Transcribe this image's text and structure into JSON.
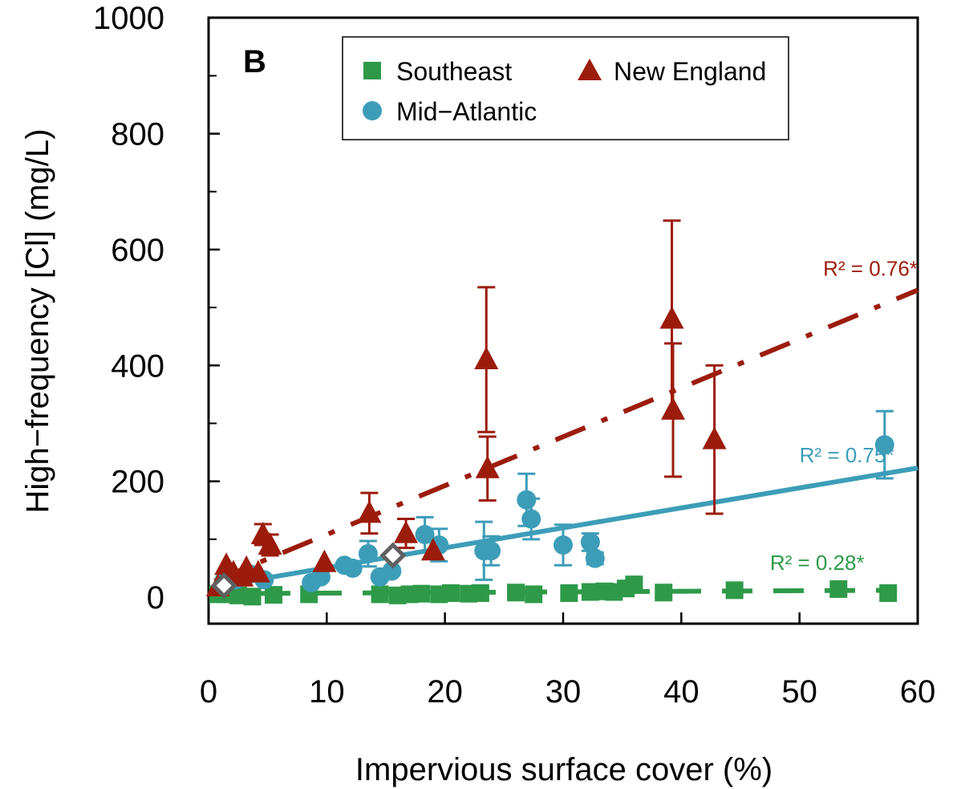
{
  "chart_data": {
    "type": "scatter",
    "panel_label": "B",
    "xlabel": "Impervious surface cover (%)",
    "ylabel": "High−frequency [Cl] (mg/L)",
    "xlim": [
      0,
      60
    ],
    "ylim": [
      -50,
      1000
    ],
    "xticks": [
      0,
      10,
      20,
      30,
      40,
      50,
      60
    ],
    "yticks": [
      0,
      200,
      400,
      600,
      800,
      1000
    ],
    "yminor": [
      100,
      300,
      500,
      700,
      900
    ],
    "legend": {
      "position": "top",
      "entries": [
        {
          "name": "Southeast",
          "color": "#2e9a49",
          "marker": "square"
        },
        {
          "name": "New England",
          "color": "#9c1c0c",
          "marker": "triangle"
        },
        {
          "name": "Mid−Atlantic",
          "color": "#3d9db8",
          "marker": "circle"
        }
      ]
    },
    "series": [
      {
        "name": "Southeast",
        "color": "#2e9a49",
        "marker": "square",
        "trend": {
          "x0": 0,
          "y0": 6,
          "x1": 58,
          "y1": 12,
          "style": "dashed"
        },
        "r2_label": "R² = 0.28*",
        "r2_pos": [
          47.5,
          47
        ],
        "points": [
          {
            "x": 0.8,
            "y": 5
          },
          {
            "x": 1.5,
            "y": 5
          },
          {
            "x": 2.5,
            "y": 3
          },
          {
            "x": 3.7,
            "y": 1
          },
          {
            "x": 5.5,
            "y": 4
          },
          {
            "x": 8.5,
            "y": 5
          },
          {
            "x": 14.5,
            "y": 5
          },
          {
            "x": 16,
            "y": 3
          },
          {
            "x": 17,
            "y": 5
          },
          {
            "x": 18,
            "y": 6
          },
          {
            "x": 19.5,
            "y": 5
          },
          {
            "x": 20.5,
            "y": 7
          },
          {
            "x": 22,
            "y": 6
          },
          {
            "x": 23,
            "y": 7
          },
          {
            "x": 26,
            "y": 8
          },
          {
            "x": 27.5,
            "y": 5
          },
          {
            "x": 30.5,
            "y": 7
          },
          {
            "x": 32.3,
            "y": 9
          },
          {
            "x": 33.5,
            "y": 10
          },
          {
            "x": 34.3,
            "y": 9
          },
          {
            "x": 35.3,
            "y": 15
          },
          {
            "x": 36,
            "y": 22
          },
          {
            "x": 38.5,
            "y": 8
          },
          {
            "x": 44.5,
            "y": 12
          },
          {
            "x": 53.3,
            "y": 14
          },
          {
            "x": 57.5,
            "y": 7
          }
        ]
      },
      {
        "name": "Mid−Atlantic",
        "color": "#3d9db8",
        "marker": "circle",
        "trend": {
          "x0": 0.5,
          "y0": 18,
          "x1": 60,
          "y1": 223,
          "style": "solid"
        },
        "r2_label": "R² = 0.75*",
        "r2_pos": [
          50,
          233
        ],
        "points": [
          {
            "x": 1.3,
            "y": 28
          },
          {
            "x": 2.3,
            "y": 30
          },
          {
            "x": 3.5,
            "y": 40
          },
          {
            "x": 4.7,
            "y": 30
          },
          {
            "x": 8.7,
            "y": 25
          },
          {
            "x": 9.5,
            "y": 35
          },
          {
            "x": 11.5,
            "y": 55
          },
          {
            "x": 12.2,
            "y": 50
          },
          {
            "x": 13.5,
            "y": 75,
            "err": 22
          },
          {
            "x": 14.5,
            "y": 35
          },
          {
            "x": 15.5,
            "y": 45
          },
          {
            "x": 18.3,
            "y": 108,
            "err": 30
          },
          {
            "x": 19.5,
            "y": 90,
            "err": 28
          },
          {
            "x": 23.3,
            "y": 80,
            "err": 50
          },
          {
            "x": 23.9,
            "y": 80,
            "err": 25
          },
          {
            "x": 26.9,
            "y": 168,
            "err": 45
          },
          {
            "x": 27.3,
            "y": 135,
            "err": 35
          },
          {
            "x": 30,
            "y": 90,
            "err": 35
          },
          {
            "x": 32.3,
            "y": 95,
            "err": 15
          },
          {
            "x": 32.7,
            "y": 67,
            "err": 10
          },
          {
            "x": 57.2,
            "y": 263,
            "err": 58
          }
        ]
      },
      {
        "name": "New England",
        "color": "#9c1c0c",
        "marker": "triangle",
        "trend": {
          "x0": 0.5,
          "y0": 28,
          "x1": 60,
          "y1": 530,
          "style": "dashdot"
        },
        "r2_label": "R² = 0.76*",
        "r2_pos": [
          52,
          555
        ],
        "points": [
          {
            "x": 0.8,
            "y": 18
          },
          {
            "x": 1.5,
            "y": 55
          },
          {
            "x": 2.1,
            "y": 42
          },
          {
            "x": 2.8,
            "y": 35
          },
          {
            "x": 3.2,
            "y": 50
          },
          {
            "x": 4.2,
            "y": 42
          },
          {
            "x": 4.6,
            "y": 108,
            "err": 18
          },
          {
            "x": 5.2,
            "y": 90,
            "err": 18
          },
          {
            "x": 9.8,
            "y": 60
          },
          {
            "x": 13.6,
            "y": 145,
            "err": 35
          },
          {
            "x": 16.7,
            "y": 110,
            "err": 25
          },
          {
            "x": 19,
            "y": 80
          },
          {
            "x": 23.5,
            "y": 410,
            "err": 125
          },
          {
            "x": 23.6,
            "y": 222,
            "err": 55
          },
          {
            "x": 39.2,
            "y": 480,
            "err": 170
          },
          {
            "x": 39.3,
            "y": 323,
            "err": 115
          },
          {
            "x": 42.8,
            "y": 272,
            "err": 128
          }
        ]
      },
      {
        "name": "",
        "color": "#606060",
        "marker": "diamond",
        "points": [
          {
            "x": 1.3,
            "y": 20
          },
          {
            "x": 15.6,
            "y": 72
          }
        ]
      }
    ]
  }
}
